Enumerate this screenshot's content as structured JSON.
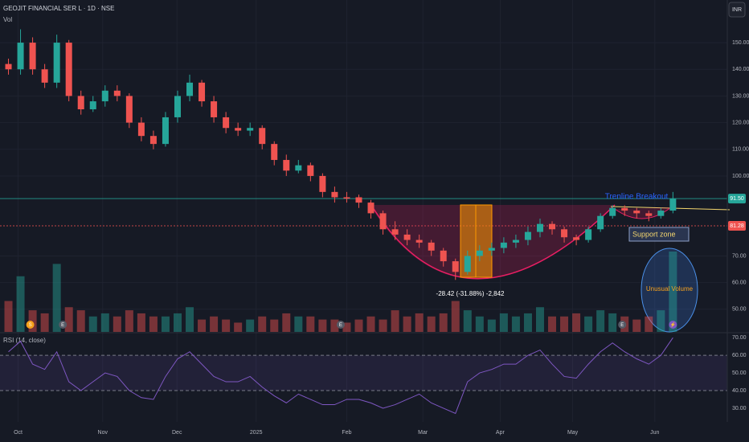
{
  "chart_data": {
    "type": "candlestick",
    "title": "GEOJIT FINANCIAL SER L · 1D · NSE",
    "volume_label": "Vol",
    "currency": "INR",
    "x": [
      0,
      1,
      2,
      3,
      4,
      5,
      6,
      7,
      8,
      9,
      10,
      11,
      12,
      13,
      14,
      15,
      16,
      17,
      18,
      19,
      20,
      21,
      22,
      23,
      24,
      25,
      26,
      27,
      28,
      29,
      30,
      31,
      32,
      33,
      34,
      35,
      36,
      37,
      38,
      39,
      40,
      41,
      42,
      43,
      44,
      45,
      46,
      47,
      48,
      49,
      50,
      51,
      52,
      53,
      54,
      55
    ],
    "open": [
      142,
      140,
      150,
      140,
      135,
      150,
      130,
      125,
      128,
      132,
      130,
      120,
      115,
      112,
      122,
      130,
      135,
      128,
      122,
      118,
      117,
      118,
      112,
      106,
      102,
      104,
      100,
      94,
      92,
      92,
      90,
      86,
      80,
      78,
      76,
      75,
      72,
      68,
      64,
      70,
      72,
      73,
      75,
      76,
      79,
      82,
      80,
      77,
      76,
      80,
      85,
      88,
      87,
      86,
      85,
      87
    ],
    "high": [
      144,
      155,
      152,
      142,
      153,
      151,
      132,
      130,
      134,
      134,
      131,
      122,
      117,
      124,
      132,
      138,
      136,
      130,
      124,
      120,
      120,
      119,
      113,
      108,
      106,
      105,
      101,
      96,
      94,
      93,
      91,
      87,
      83,
      80,
      78,
      76,
      73,
      69,
      72,
      74,
      75,
      77,
      78,
      81,
      84,
      83,
      81,
      78,
      81,
      86,
      89,
      89,
      88,
      87,
      88,
      94
    ],
    "low": [
      138,
      138,
      138,
      133,
      133,
      128,
      123,
      124,
      126,
      128,
      118,
      113,
      110,
      111,
      120,
      128,
      126,
      120,
      116,
      115,
      115,
      110,
      104,
      100,
      101,
      98,
      92,
      90,
      90,
      88,
      84,
      78,
      76,
      74,
      73,
      70,
      66,
      61,
      63,
      68,
      70,
      71,
      73,
      74,
      77,
      78,
      75,
      74,
      75,
      79,
      84,
      85,
      84,
      83,
      84,
      86
    ],
    "close": [
      140,
      150,
      140,
      135,
      150,
      130,
      125,
      128,
      132,
      130,
      120,
      115,
      112,
      122,
      130,
      135,
      128,
      122,
      118,
      117,
      118,
      112,
      106,
      102,
      104,
      100,
      94,
      92,
      91.5,
      90,
      86,
      80,
      78,
      76,
      75,
      72,
      68,
      64,
      70,
      72,
      73,
      75,
      76,
      79,
      82,
      80,
      77,
      76,
      80,
      85,
      88,
      87,
      86,
      85,
      87,
      91.5
    ],
    "volume": [
      500,
      900,
      350,
      300,
      1100,
      400,
      350,
      250,
      300,
      250,
      350,
      300,
      250,
      250,
      300,
      400,
      200,
      250,
      200,
      150,
      200,
      250,
      200,
      300,
      250,
      250,
      200,
      200,
      150,
      200,
      250,
      200,
      350,
      250,
      300,
      250,
      300,
      500,
      350,
      250,
      200,
      300,
      250,
      300,
      400,
      250,
      250,
      300,
      250,
      350,
      300,
      250,
      200,
      250,
      350,
      1300
    ],
    "up_color": "#26a69a",
    "down_color": "#ef5350",
    "xlim": [
      -0.7,
      59.5
    ],
    "xticks": [
      {
        "value": 0.8,
        "label": "Oct"
      },
      {
        "value": 7.8,
        "label": "Nov"
      },
      {
        "value": 13.95,
        "label": "Dec"
      },
      {
        "value": 20.5,
        "label": "2025"
      },
      {
        "value": 28,
        "label": "Feb"
      },
      {
        "value": 34.3,
        "label": "Mar"
      },
      {
        "value": 40.7,
        "label": "Apr"
      },
      {
        "value": 46.7,
        "label": "May"
      },
      {
        "value": 53.5,
        "label": "Jun"
      }
    ],
    "ylim": [
      41.5,
      166
    ],
    "yticks": [
      {
        "value": 50,
        "label": "50.00"
      },
      {
        "value": 60,
        "label": "60.00"
      },
      {
        "value": 70,
        "label": "70.00"
      },
      {
        "value": 100,
        "label": "100.00"
      },
      {
        "value": 110,
        "label": "110.00"
      },
      {
        "value": 120,
        "label": "120.00"
      },
      {
        "value": 130,
        "label": "130.00"
      },
      {
        "value": 140,
        "label": "140.00"
      },
      {
        "value": 150,
        "label": "150.00"
      }
    ],
    "price_lines": [
      {
        "value": 91.5,
        "label": "91.50",
        "color": "#26a69a"
      },
      {
        "value": 81.28,
        "label": "81.28",
        "color": "#ef5350"
      }
    ],
    "events": [
      {
        "x": 1.8,
        "label": "S",
        "color": "#f7a21b"
      },
      {
        "x": 4.5,
        "label": "E",
        "color": "#555a66"
      },
      {
        "x": 27.5,
        "label": "E",
        "color": "#555a66"
      },
      {
        "x": 50.8,
        "label": "E",
        "color": "#555a66"
      },
      {
        "x": 55,
        "label": "⚡",
        "color": "#7e57c2"
      }
    ],
    "annotations": {
      "breakout": "Trenline Breakout",
      "support": "Support zone",
      "volume": "Unusual Volume",
      "measure": "-28.42 (-31.88%) -2,842"
    },
    "rsi": {
      "title": "RSI (14, close)",
      "color": "#7e57c2",
      "values": [
        62,
        68,
        55,
        52,
        62,
        45,
        40,
        45,
        50,
        48,
        40,
        36,
        35,
        48,
        58,
        62,
        55,
        48,
        45,
        45,
        48,
        42,
        37,
        33,
        38,
        35,
        32,
        32,
        35,
        35,
        33,
        30,
        32,
        35,
        38,
        33,
        30,
        27,
        45,
        50,
        52,
        55,
        55,
        60,
        63,
        55,
        48,
        47,
        55,
        62,
        67,
        62,
        58,
        55,
        60,
        70
      ],
      "ylim": [
        24.5,
        71
      ],
      "yticks": [
        {
          "value": 30,
          "label": "30.00"
        },
        {
          "value": 40,
          "label": "40.00"
        },
        {
          "value": 50,
          "label": "50.00"
        },
        {
          "value": 60,
          "label": "60.00"
        },
        {
          "value": 70,
          "label": "70.00"
        }
      ],
      "band": [
        40,
        60
      ]
    }
  }
}
